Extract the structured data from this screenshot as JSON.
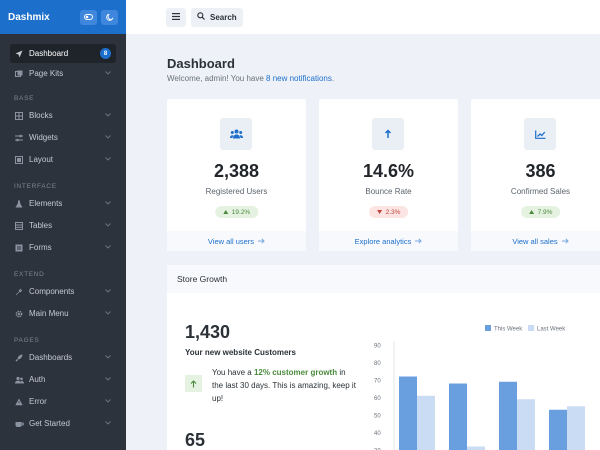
{
  "brand": {
    "name": "Dashmix",
    "icons": [
      "toggle-icon",
      "moon-icon"
    ]
  },
  "sidebar": {
    "top": [
      {
        "label": "Dashboard",
        "icon": "compass-icon",
        "badge": "8",
        "active": true
      },
      {
        "label": "Page Kits",
        "icon": "layers-icon",
        "caret": true
      }
    ],
    "sections": [
      {
        "title": "BASE",
        "items": [
          {
            "label": "Blocks",
            "icon": "grid-icon"
          },
          {
            "label": "Widgets",
            "icon": "sliders-icon"
          },
          {
            "label": "Layout",
            "icon": "square-icon"
          }
        ]
      },
      {
        "title": "INTERFACE",
        "items": [
          {
            "label": "Elements",
            "icon": "flask-icon"
          },
          {
            "label": "Tables",
            "icon": "table-icon"
          },
          {
            "label": "Forms",
            "icon": "form-icon"
          }
        ]
      },
      {
        "title": "EXTEND",
        "items": [
          {
            "label": "Components",
            "icon": "wrench-icon"
          },
          {
            "label": "Main Menu",
            "icon": "cog-icon"
          }
        ]
      },
      {
        "title": "PAGES",
        "items": [
          {
            "label": "Dashboards",
            "icon": "rocket-icon"
          },
          {
            "label": "Auth",
            "icon": "users-icon"
          },
          {
            "label": "Error",
            "icon": "warning-icon"
          },
          {
            "label": "Get Started",
            "icon": "coffee-icon"
          }
        ]
      }
    ]
  },
  "header": {
    "menu_icon": "hamburger-icon",
    "search_label": "Search"
  },
  "page": {
    "title": "Dashboard",
    "welcome_prefix": "Welcome, admin! You have ",
    "welcome_link": "8 new notifications",
    "welcome_suffix": "."
  },
  "cards": [
    {
      "icon": "users-icon",
      "value": "2,388",
      "label": "Registered Users",
      "badge": "19.2%",
      "trend": "up",
      "footer": "View all users"
    },
    {
      "icon": "arrow-up-icon",
      "value": "14.6%",
      "label": "Bounce Rate",
      "badge": "2.3%",
      "trend": "down",
      "footer": "Explore analytics"
    },
    {
      "icon": "chart-line-icon",
      "value": "386",
      "label": "Confirmed Sales",
      "badge": "7.9%",
      "trend": "up",
      "footer": "View all sales"
    }
  ],
  "growth": {
    "title": "Store Growth",
    "customers_value": "1,430",
    "customers_label": "Your new website Customers",
    "text_prefix": "You have a ",
    "text_highlight": "12% customer growth",
    "text_suffix": " in the last 30 days. This is amazing, keep it up!",
    "second_value": "65"
  },
  "colors": {
    "accent": "#1d6fcc",
    "sidebar": "#2d333c",
    "this_week": "#6a9fdf",
    "last_week": "#c9dcf3"
  },
  "chart_data": {
    "type": "bar",
    "legend_position": "top-right",
    "y_ticks": [
      "90",
      "80",
      "70",
      "60",
      "50",
      "40",
      "30"
    ],
    "ylim": [
      30,
      90
    ],
    "series": [
      {
        "name": "This Week",
        "values": [
          72,
          68,
          69,
          53
        ]
      },
      {
        "name": "Last Week",
        "values": [
          61,
          32,
          59,
          55
        ]
      }
    ]
  }
}
